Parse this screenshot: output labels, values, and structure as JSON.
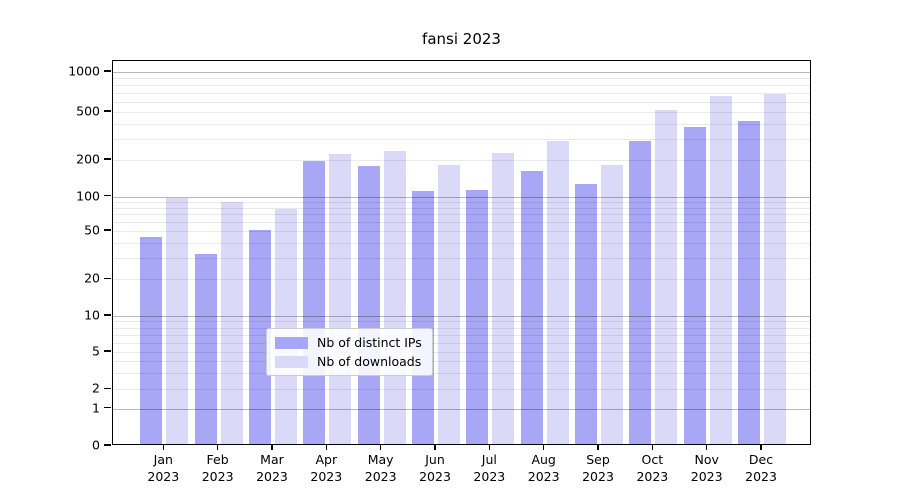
{
  "title": "fansi 2023",
  "colors": {
    "ips_bar": "#a7a7f6",
    "downloads_bar": "#dadaf8",
    "axis": "#000000",
    "grid_major": "#b5b5b5",
    "grid_minor": "#e9e9e9"
  },
  "legend": {
    "items": [
      {
        "series": "ips",
        "label": "Nb of distinct IPs"
      },
      {
        "series": "downloads",
        "label": "Nb of downloads"
      }
    ]
  },
  "y_axis": {
    "tick_labels": [
      "0",
      "1",
      "2",
      "5",
      "10",
      "20",
      "50",
      "100",
      "200",
      "500",
      "1000"
    ]
  },
  "x_axis": {
    "year": "2023",
    "months": [
      "Jan",
      "Feb",
      "Mar",
      "Apr",
      "May",
      "Jun",
      "Jul",
      "Aug",
      "Sep",
      "Oct",
      "Nov",
      "Dec"
    ]
  },
  "chart_data": {
    "type": "bar",
    "title": "fansi 2023",
    "categories": [
      "Jan 2023",
      "Feb 2023",
      "Mar 2023",
      "Apr 2023",
      "May 2023",
      "Jun 2023",
      "Jul 2023",
      "Aug 2023",
      "Sep 2023",
      "Oct 2023",
      "Nov 2023",
      "Dec 2023"
    ],
    "series": [
      {
        "name": "Nb of distinct IPs",
        "values": [
          43,
          31,
          49,
          188,
          173,
          108,
          109,
          158,
          122,
          278,
          365,
          410
        ]
      },
      {
        "name": "Nb of downloads",
        "values": [
          94,
          87,
          75,
          218,
          228,
          177,
          219,
          275,
          176,
          505,
          640,
          662
        ]
      }
    ],
    "yscale": "symlog",
    "yticks": [
      0,
      1,
      2,
      5,
      10,
      20,
      50,
      100,
      200,
      500,
      1000
    ],
    "ylim": [
      0,
      1230
    ],
    "grid": true,
    "legend_position": "lower center"
  }
}
